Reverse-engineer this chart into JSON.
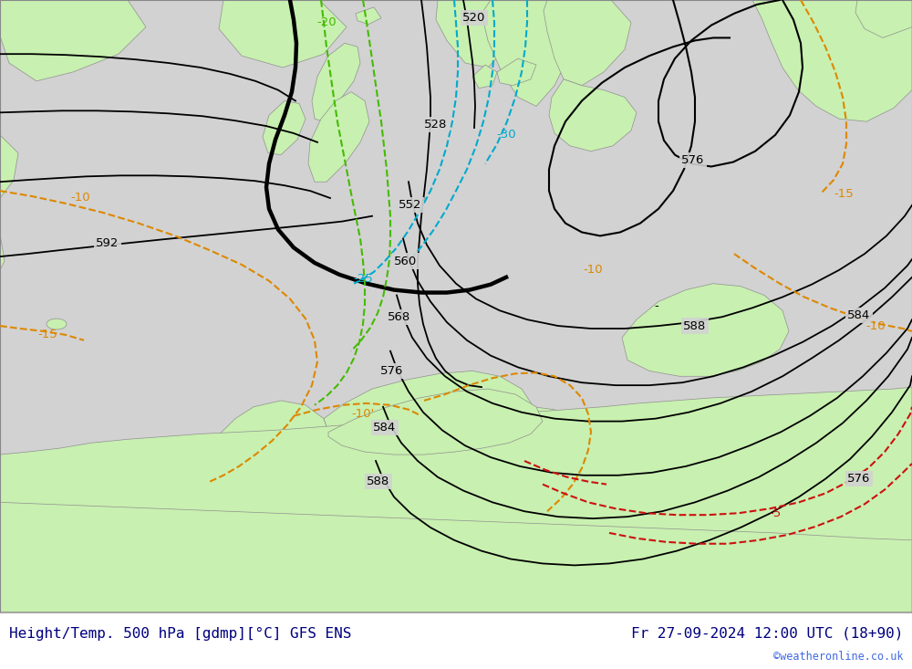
{
  "title_left": "Height/Temp. 500 hPa [gdmp][°C] GFS ENS",
  "title_right": "Fr 27-09-2024 12:00 UTC (18+90)",
  "watermark": "©weatheronline.co.uk",
  "title_color": "#000080",
  "watermark_color": "#4169E1",
  "figsize": [
    10.0,
    7.33
  ],
  "dpi": 100,
  "sea_color": "#d2d2d2",
  "land_color": "#c8f0b0",
  "land_edge": "#909090",
  "map_bg": "#d2d2d2"
}
